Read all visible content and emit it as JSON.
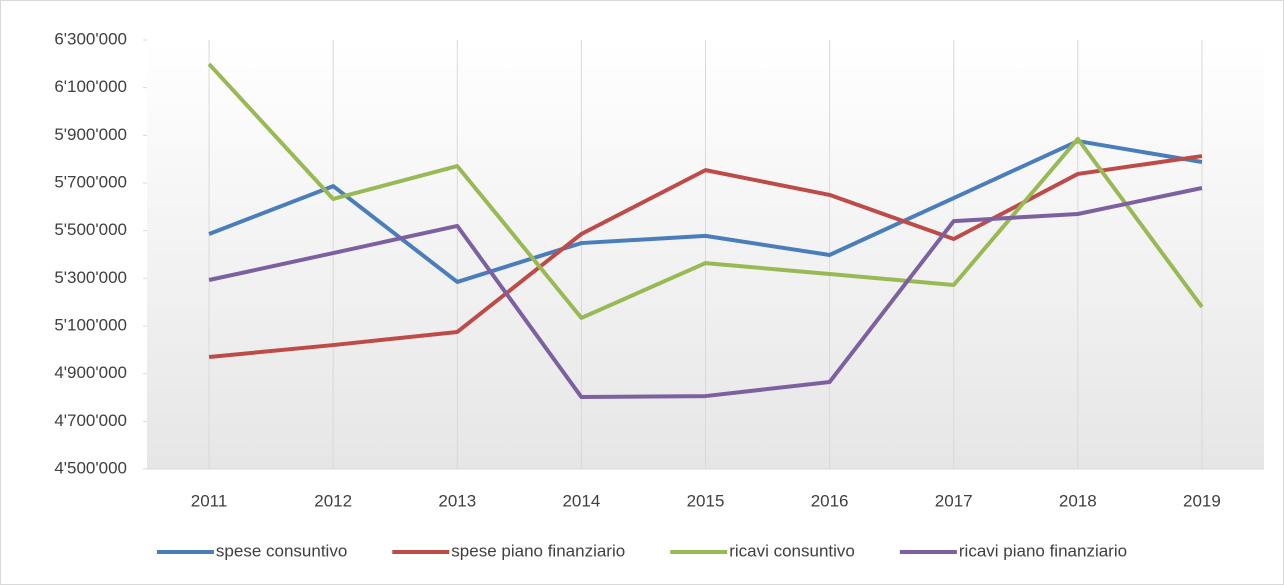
{
  "chart_data": {
    "type": "line",
    "categories": [
      "2011",
      "2012",
      "2013",
      "2014",
      "2015",
      "2016",
      "2017",
      "2018",
      "2019"
    ],
    "series": [
      {
        "name": "spese consuntivo",
        "color": "#4a7ebb",
        "values": [
          5486000,
          5687000,
          5285000,
          5448000,
          5478000,
          5398000,
          5637000,
          5876000,
          5788000
        ]
      },
      {
        "name": "spese piano finanziario",
        "color": "#be4b48",
        "values": [
          4970000,
          5020000,
          5075000,
          5486000,
          5754000,
          5650000,
          5465000,
          5738000,
          5813000
        ]
      },
      {
        "name": "ricavi consuntivo",
        "color": "#98b954",
        "values": [
          6199000,
          5633000,
          5771000,
          5134000,
          5364000,
          5318000,
          5272000,
          5885000,
          5180000
        ]
      },
      {
        "name": "ricavi piano finanziario",
        "color": "#7d60a0",
        "values": [
          5293000,
          5406000,
          5520000,
          4802000,
          4806000,
          4865000,
          5540000,
          5570000,
          5679000
        ]
      }
    ],
    "ylim": [
      4500000,
      6300000
    ],
    "yticks": [
      {
        "value": 4500000,
        "label": "4'500'000"
      },
      {
        "value": 4700000,
        "label": "4'700'000"
      },
      {
        "value": 4900000,
        "label": "4'900'000"
      },
      {
        "value": 5100000,
        "label": "5'100'000"
      },
      {
        "value": 5300000,
        "label": "5'300'000"
      },
      {
        "value": 5500000,
        "label": "5'500'000"
      },
      {
        "value": 5700000,
        "label": "5'700'000"
      },
      {
        "value": 5900000,
        "label": "5'900'000"
      },
      {
        "value": 6100000,
        "label": "6'100'000"
      },
      {
        "value": 6300000,
        "label": "6'300'000"
      }
    ],
    "legend": "bottom"
  }
}
